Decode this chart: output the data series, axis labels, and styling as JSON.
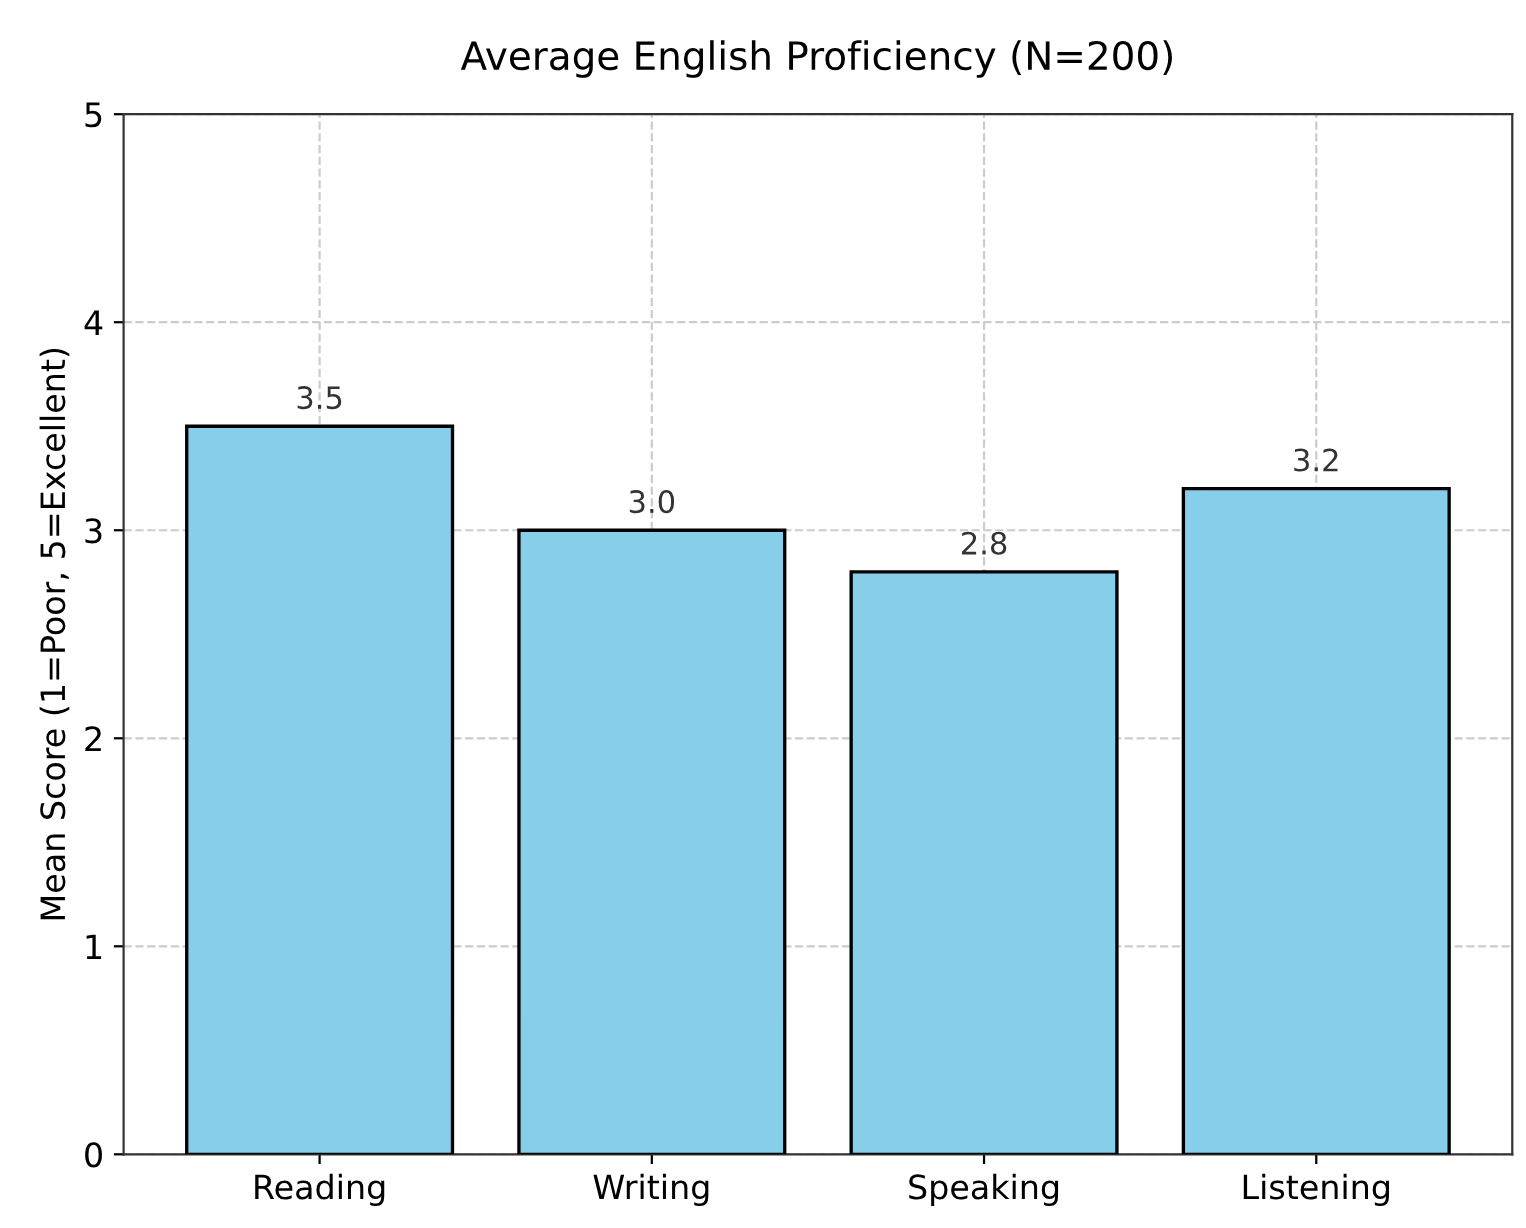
{
  "chart_data": {
    "type": "bar",
    "title": "Average English Proficiency (N=200)",
    "ylabel": "Mean Score (1=Poor, 5=Excellent)",
    "categories": [
      "Reading",
      "Writing",
      "Speaking",
      "Listening"
    ],
    "values": [
      3.5,
      3.0,
      2.8,
      3.2
    ],
    "color": "#87ceeb",
    "value_labels": [
      "3.5",
      "3.0",
      "2.8",
      "3.2"
    ],
    "ylim": [
      0,
      5
    ],
    "yticks": [
      0,
      1,
      2,
      3,
      4,
      5
    ],
    "grid": true
  }
}
